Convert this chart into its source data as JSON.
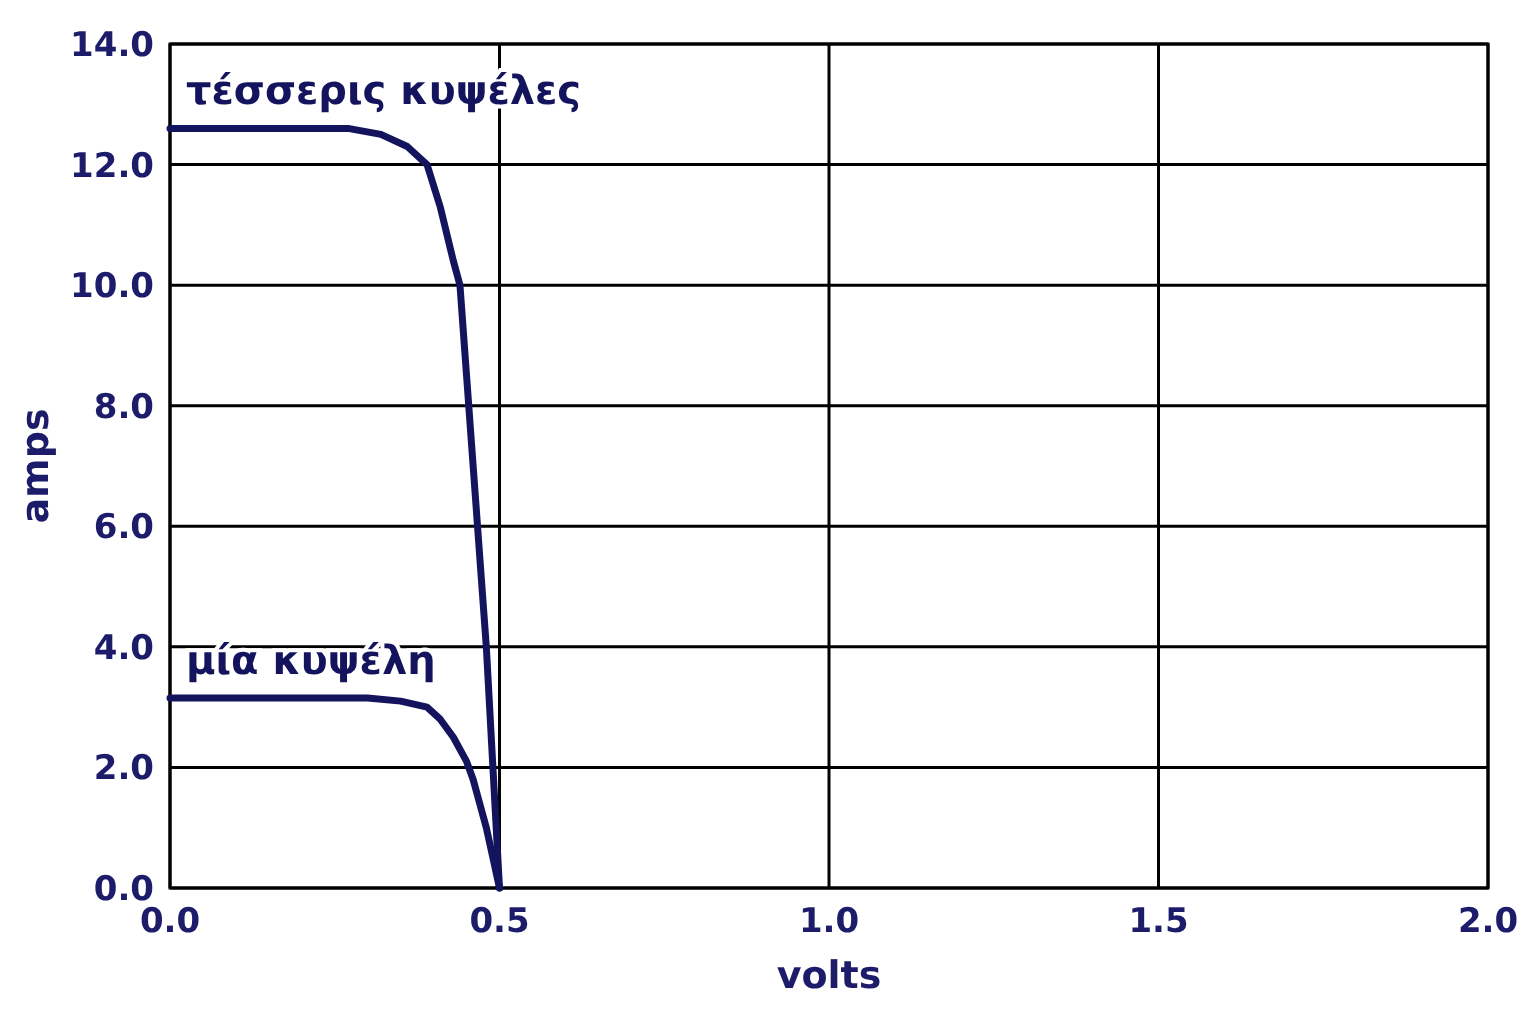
{
  "chart_data": {
    "type": "line",
    "xlabel": "volts",
    "ylabel": "amps",
    "xlim": [
      0,
      2
    ],
    "ylim": [
      0,
      14
    ],
    "xticks": [
      {
        "value": 0,
        "label": "0.0"
      },
      {
        "value": 0.5,
        "label": "0.5"
      },
      {
        "value": 1,
        "label": "1.0"
      },
      {
        "value": 1.5,
        "label": "1.5"
      },
      {
        "value": 2,
        "label": "2.0"
      }
    ],
    "yticks": [
      {
        "value": 0,
        "label": "0.0"
      },
      {
        "value": 2,
        "label": "2.0"
      },
      {
        "value": 4,
        "label": "4.0"
      },
      {
        "value": 6,
        "label": "6.0"
      },
      {
        "value": 8,
        "label": "8.0"
      },
      {
        "value": 10,
        "label": "10.0"
      },
      {
        "value": 12,
        "label": "12.0"
      },
      {
        "value": 14,
        "label": "14.0"
      }
    ],
    "grid": true,
    "marker": "none",
    "line_style": "solid",
    "series": [
      {
        "name": "τέσσερις κυψέλες",
        "color": "#14145e",
        "x": [
          0,
          0.1,
          0.2,
          0.27,
          0.32,
          0.36,
          0.39,
          0.41,
          0.43,
          0.44,
          0.45,
          0.46,
          0.47,
          0.48,
          0.49,
          0.5
        ],
        "values": [
          12.6,
          12.6,
          12.6,
          12.6,
          12.5,
          12.3,
          12.0,
          11.3,
          10.4,
          10.0,
          8.5,
          7.0,
          5.5,
          4.0,
          2.0,
          0
        ]
      },
      {
        "name": "μία κυψέλη",
        "color": "#14145e",
        "x": [
          0,
          0.1,
          0.2,
          0.3,
          0.35,
          0.39,
          0.41,
          0.43,
          0.45,
          0.46,
          0.47,
          0.48,
          0.49,
          0.5
        ],
        "values": [
          3.15,
          3.15,
          3.15,
          3.15,
          3.1,
          3.0,
          2.8,
          2.5,
          2.1,
          1.8,
          1.4,
          1.0,
          0.5,
          0
        ]
      }
    ]
  }
}
